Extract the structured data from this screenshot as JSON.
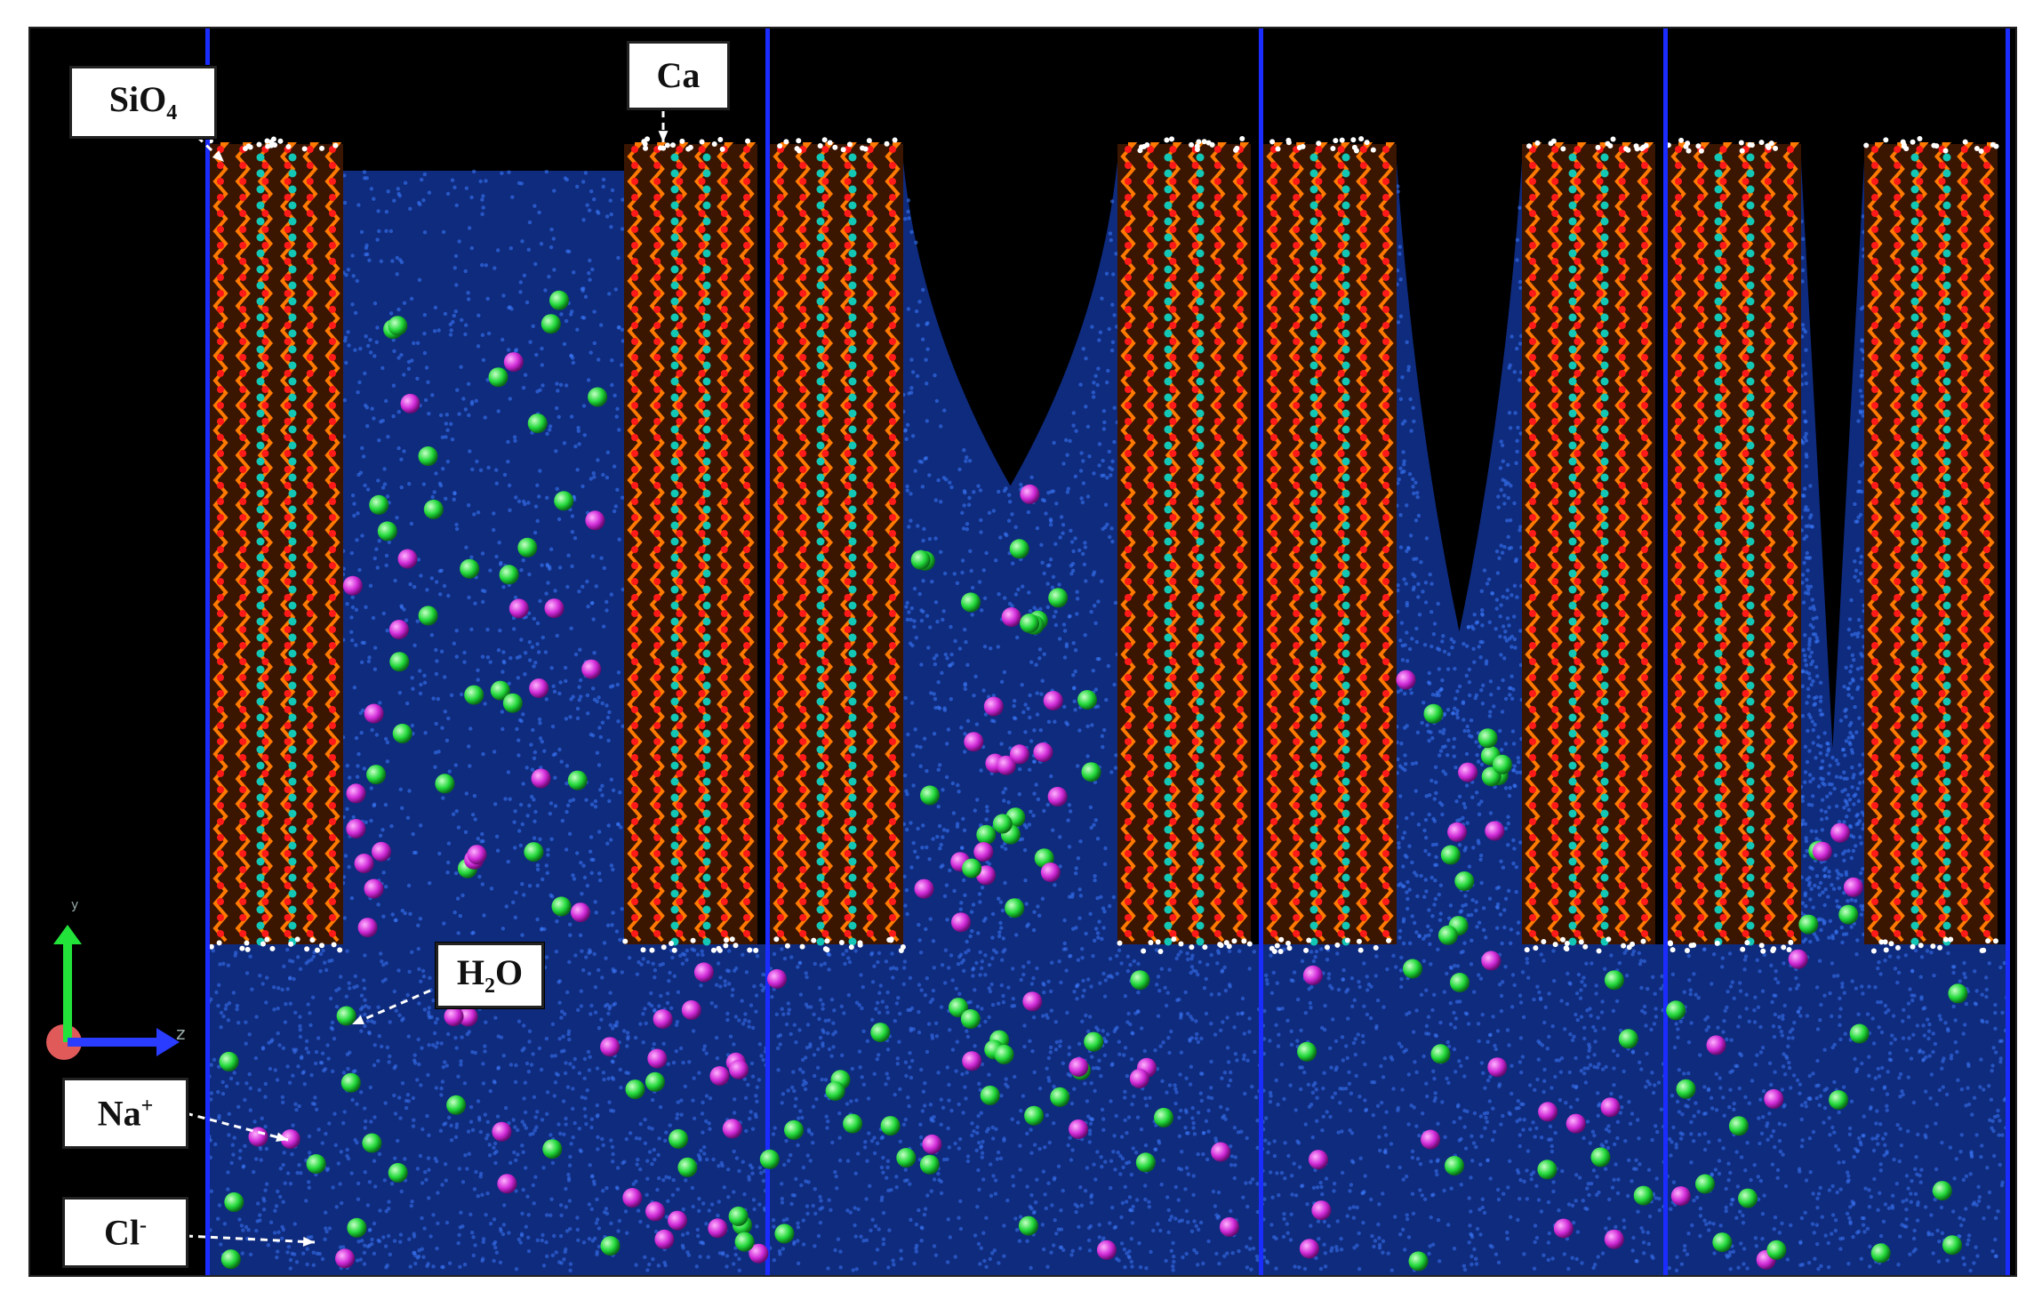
{
  "labels": {
    "sio4": {
      "base": "SiO",
      "sub": "4"
    },
    "ca": "Ca",
    "h2o": {
      "pre": "H",
      "sub": "2",
      "post": "O"
    },
    "na": {
      "base": "Na",
      "sup": "+"
    },
    "cl": {
      "base": "Cl",
      "sup": "-"
    }
  },
  "axes": {
    "y": "y",
    "z": "z"
  },
  "panels": [
    {
      "wall_top": "left",
      "water_recess": 0.0
    },
    {
      "wall_top": "left",
      "water_recess": 0.42
    },
    {
      "wall_top": "left",
      "water_recess": 0.62
    },
    {
      "wall_top": "left",
      "water_recess": 0.78
    }
  ],
  "colors": {
    "background": "#000000",
    "water": "#1a3a9c",
    "silicate_chain": "#ff7a00",
    "oxygen": "#ff1a1a",
    "calcium": "#13c7b6",
    "hydrogen": "#ffffff",
    "sodium": "#d12bd8",
    "chloride": "#22d93a",
    "panel_divider": "#1b2cff"
  }
}
